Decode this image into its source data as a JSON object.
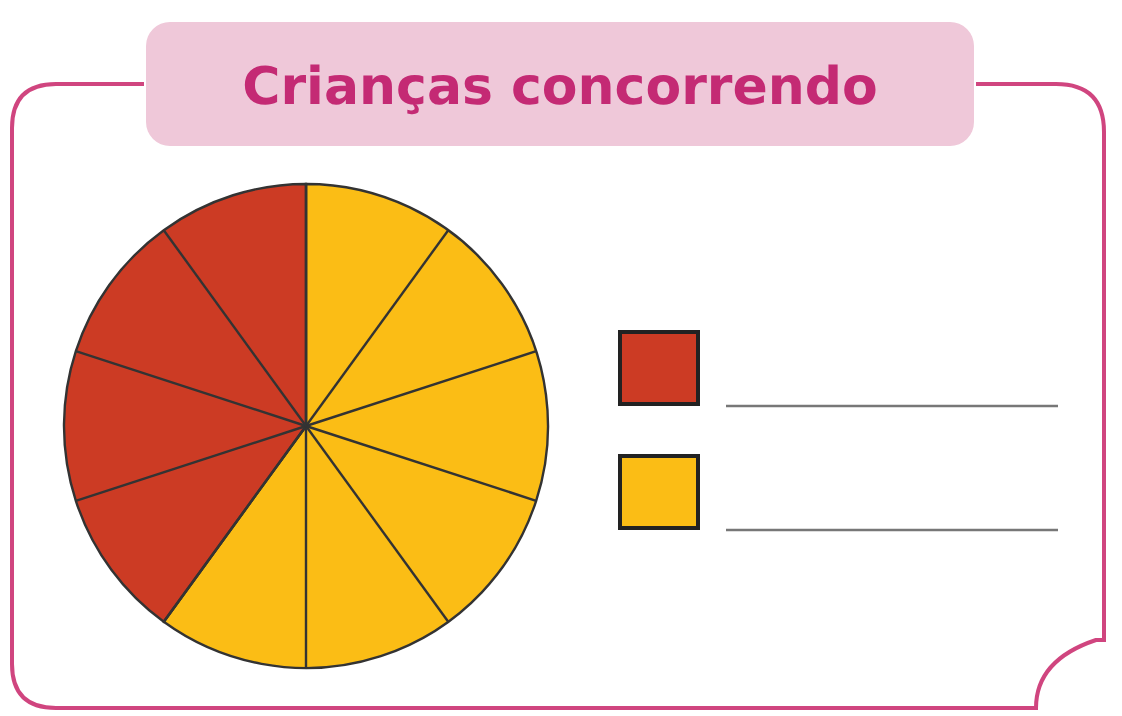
{
  "chart_data": {
    "type": "pie",
    "title": "Crianças concorrendo",
    "categories": [
      null,
      null
    ],
    "values": [
      60,
      40
    ],
    "colors": [
      "#fbbd15",
      "#cc3b24"
    ]
  }
}
